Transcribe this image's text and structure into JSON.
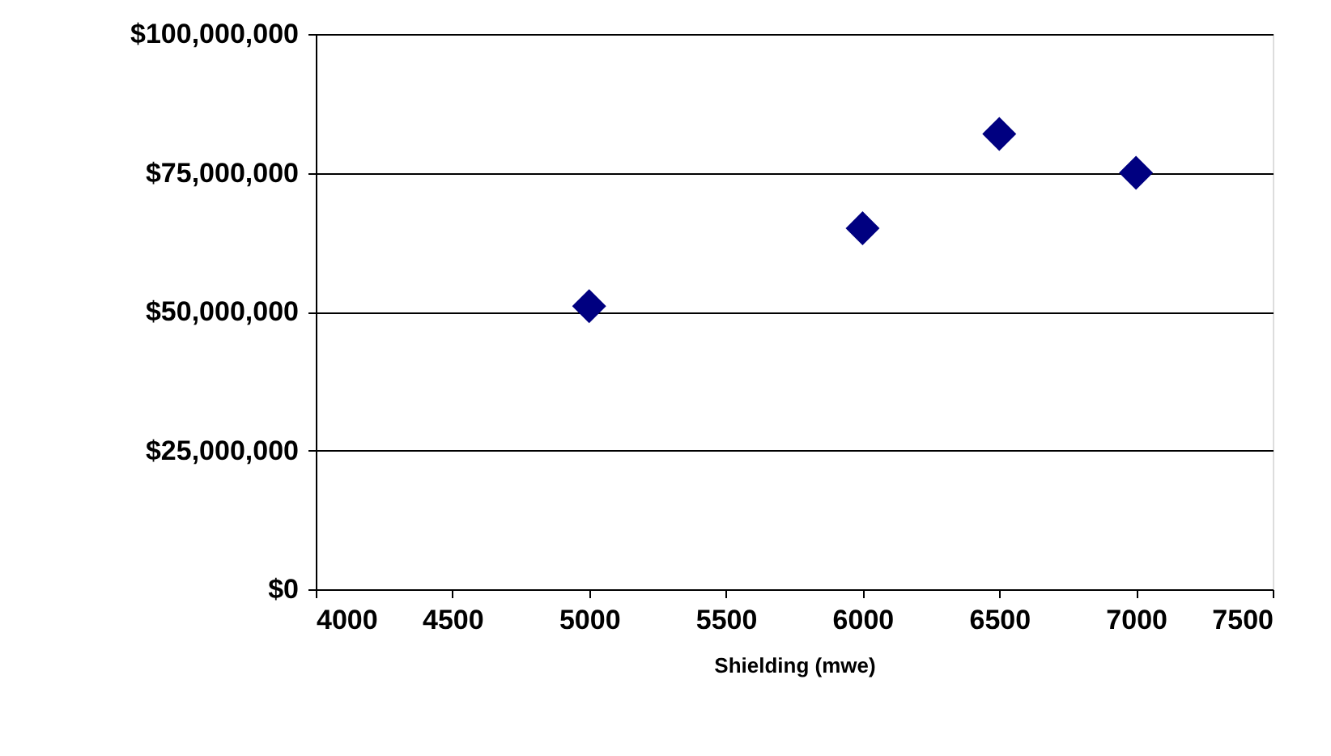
{
  "chart_data": {
    "type": "scatter",
    "xlabel": "Shielding (mwe)",
    "x": [
      5000,
      6000,
      6500,
      7000
    ],
    "series": [
      {
        "color": "#000080",
        "values": [
          51000000,
          65000000,
          82000000,
          75000000
        ]
      }
    ],
    "marker": "diamond",
    "xlim": [
      4000,
      7500
    ],
    "xticks": [
      4000,
      4500,
      5000,
      5500,
      6000,
      6500,
      7000,
      7500
    ],
    "ylim": [
      0,
      100000000
    ],
    "yticks": [
      {
        "value": 0,
        "label": "$0"
      },
      {
        "value": 25000000,
        "label": "$25,000,000"
      },
      {
        "value": 50000000,
        "label": "$50,000,000"
      },
      {
        "value": 75000000,
        "label": "$75,000,000"
      },
      {
        "value": 100000000,
        "label": "$100,000,000"
      }
    ],
    "grid": "y"
  }
}
